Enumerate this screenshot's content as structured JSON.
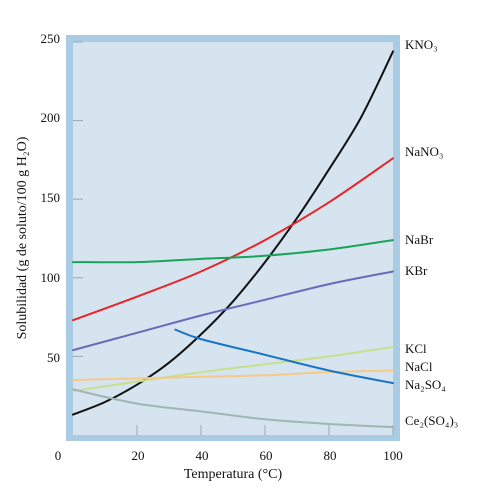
{
  "chart_data": {
    "type": "line",
    "title": "",
    "xlabel": "Temperatura (°C)",
    "ylabel": "Solubilidad (g de soluto/100 g H₂O)",
    "xlim": [
      0,
      100
    ],
    "ylim": [
      0,
      250
    ],
    "x_ticks": [
      "0",
      "20",
      "40",
      "60",
      "80",
      "100"
    ],
    "y_ticks": [
      "50",
      "100",
      "150",
      "200",
      "250"
    ],
    "grid": false,
    "legend": "labels-right",
    "colors": {
      "plot_background": "#d5e4ef",
      "frame": "#a9cbe3"
    },
    "series": [
      {
        "name": "KNO₃",
        "color": "#111111",
        "x": [
          0,
          10,
          20,
          30,
          40,
          50,
          60,
          70,
          80,
          90,
          100
        ],
        "y": [
          13,
          21,
          32,
          46,
          64,
          85,
          110,
          138,
          169,
          202,
          244
        ]
      },
      {
        "name": "NaNO₃",
        "color": "#e8242a",
        "x": [
          0,
          20,
          40,
          60,
          80,
          100
        ],
        "y": [
          73,
          88,
          104,
          124,
          148,
          176
        ]
      },
      {
        "name": "NaBr",
        "color": "#1aa35a",
        "x": [
          0,
          20,
          40,
          60,
          80,
          100
        ],
        "y": [
          110,
          110,
          112,
          114,
          118,
          124
        ]
      },
      {
        "name": "KBr",
        "color": "#6a6aba",
        "x": [
          0,
          20,
          40,
          60,
          80,
          100
        ],
        "y": [
          54,
          65,
          76,
          86,
          96,
          104
        ]
      },
      {
        "name": "KCl",
        "color": "#c7e08a",
        "x": [
          0,
          20,
          40,
          60,
          80,
          100
        ],
        "y": [
          28,
          34,
          40,
          45,
          50,
          56
        ]
      },
      {
        "name": "NaCl",
        "color": "#f7c987",
        "x": [
          0,
          20,
          40,
          60,
          80,
          100
        ],
        "y": [
          35,
          36,
          37,
          38,
          40,
          41
        ]
      },
      {
        "name": "Na₂SO₄",
        "color": "#1a74c4",
        "x": [
          32,
          40,
          60,
          80,
          100
        ],
        "y": [
          67,
          61,
          51,
          41,
          33
        ]
      },
      {
        "name": "Ce₂(SO₄)₃",
        "color": "#9fb7b3",
        "x": [
          0,
          20,
          40,
          60,
          80,
          100
        ],
        "y": [
          29,
          20,
          15,
          10,
          7,
          5
        ]
      }
    ]
  }
}
